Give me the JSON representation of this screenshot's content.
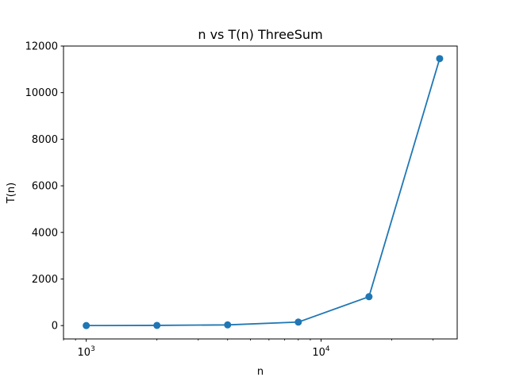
{
  "chart_data": {
    "type": "line",
    "title": "n vs T(n) ThreeSum",
    "xlabel": "n",
    "ylabel": "T(n)",
    "xscale": "log",
    "xlim": [
      800,
      38000
    ],
    "ylim": [
      -573,
      12000
    ],
    "x_ticks": [
      {
        "value": 1000,
        "base": "10",
        "exp": "3"
      },
      {
        "value": 10000,
        "base": "10",
        "exp": "4"
      }
    ],
    "y_ticks": [
      {
        "value": 0,
        "label": "0"
      },
      {
        "value": 2000,
        "label": "2000"
      },
      {
        "value": 4000,
        "label": "4000"
      },
      {
        "value": 6000,
        "label": "6000"
      },
      {
        "value": 8000,
        "label": "8000"
      },
      {
        "value": 10000,
        "label": "10000"
      },
      {
        "value": 12000,
        "label": "12000"
      }
    ],
    "grid": false,
    "series": [
      {
        "color": "#1f77b4",
        "marker": "circle",
        "x": [
          1000,
          2000,
          4000,
          8000,
          16000,
          32000
        ],
        "y": [
          1,
          8,
          30,
          150,
          1240,
          11460
        ]
      }
    ]
  }
}
